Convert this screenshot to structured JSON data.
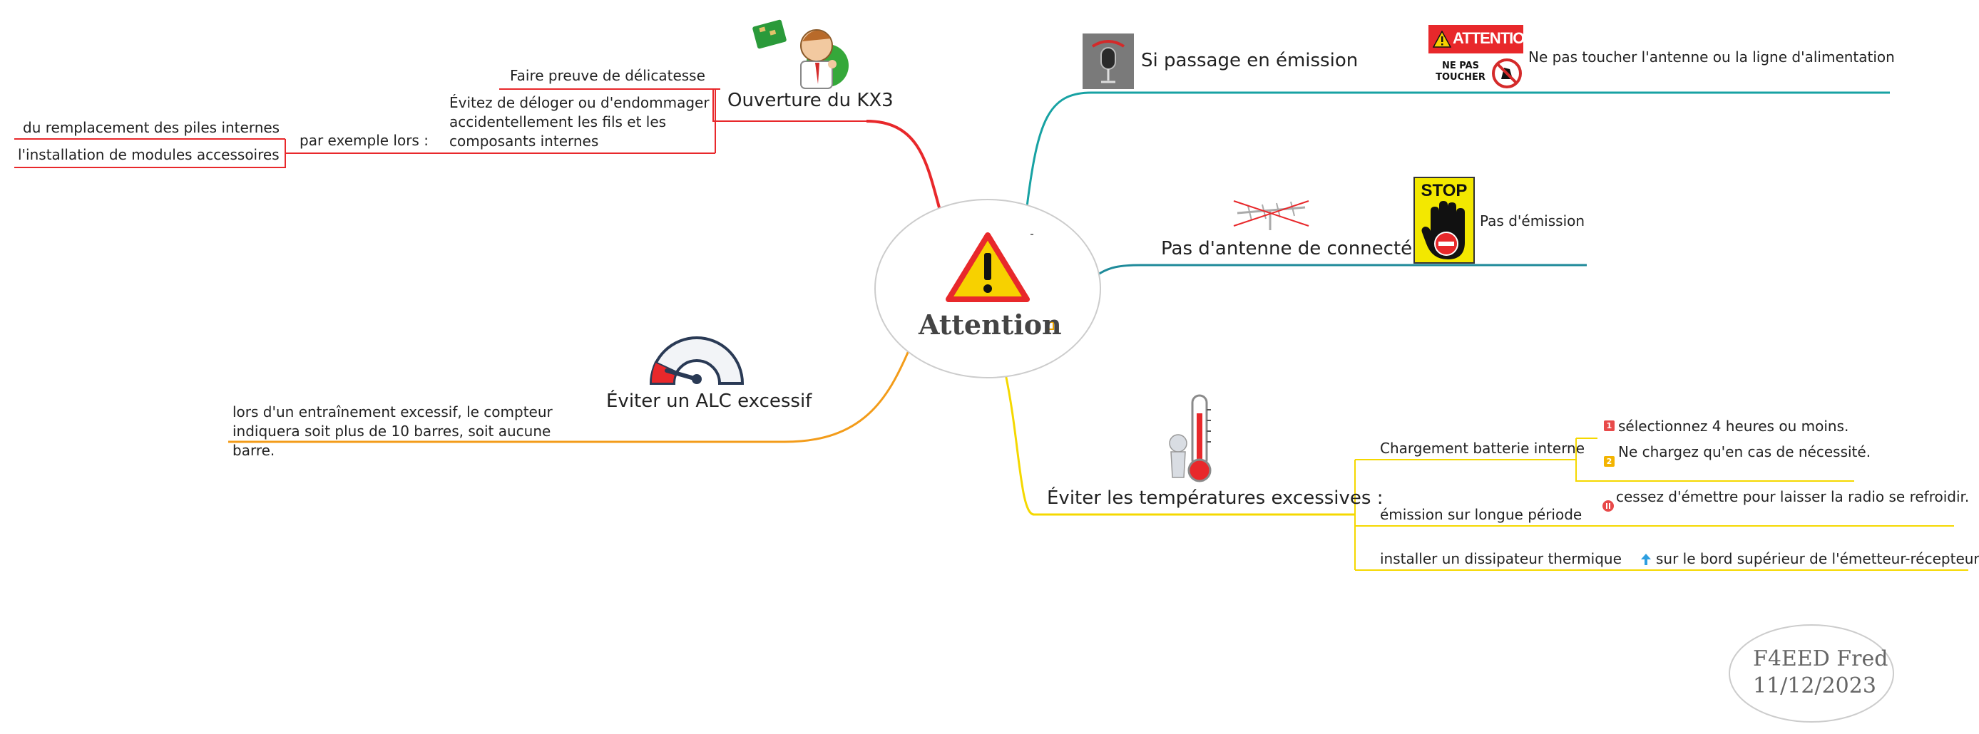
{
  "central": {
    "title": "Attention"
  },
  "author": {
    "name": "F4EED Fred",
    "date": "11/12/2023"
  },
  "colors": {
    "red_branch": "#e8282b",
    "teal_branch": "#17a2a3",
    "teal2_branch": "#1e8a9a",
    "orange_branch": "#f39c1a",
    "yellow_branch": "#f5d800",
    "blue_arrow": "#2e9fe0"
  },
  "branches": {
    "kx3": {
      "label": "Ouverture du KX3",
      "icon": "technician-with-circuit-board-icon",
      "delicatesse": "Faire preuve de délicatesse",
      "evitez": "Évitez de déloger ou d'endommager accidentellement les fils et les composants internes",
      "exemple": "par exemple lors :",
      "piles": "du remplacement des piles internes",
      "modules": "l'installation de modules accessoires"
    },
    "emission": {
      "label": "Si passage en émission",
      "icon": "microphone-on-air-icon",
      "badge_attention": "ATTENTION",
      "badge_ne_pas": "NE PAS",
      "badge_toucher": "TOUCHER",
      "note": "Ne pas toucher l'antenne ou la ligne d'alimentation"
    },
    "antenne": {
      "label": "Pas d'antenne de connecté",
      "icon": "crossed-out-antenna-icon",
      "stop": "STOP",
      "note": "Pas d'émission"
    },
    "alc": {
      "label": "Éviter un ALC excessif",
      "icon": "gauge-icon",
      "note": "lors d'un entraînement excessif, le compteur indiquera soit plus de 10 barres, soit aucune barre."
    },
    "temp": {
      "label": "Éviter les températures excessives  :",
      "icon": "thermometer-icon",
      "charge": "Chargement batterie interne",
      "charge_1_num": "1",
      "charge_1": "sélectionnez 4 heures ou moins.",
      "charge_2_num": "2",
      "charge_2": "Ne chargez qu'en cas de nécessité.",
      "longue": "émission sur longue période",
      "longue_note": "cessez d'émettre pour laisser la radio se refroidir.",
      "dissip": "installer un dissipateur thermique",
      "dissip_note": "sur le bord supérieur de l'émetteur-récepteur."
    }
  }
}
